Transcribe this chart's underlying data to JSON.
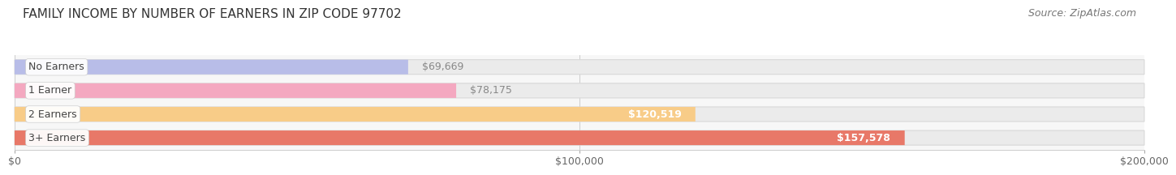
{
  "title": "FAMILY INCOME BY NUMBER OF EARNERS IN ZIP CODE 97702",
  "source": "Source: ZipAtlas.com",
  "categories": [
    "No Earners",
    "1 Earner",
    "2 Earners",
    "3+ Earners"
  ],
  "values": [
    69669,
    78175,
    120519,
    157578
  ],
  "bar_colors": [
    "#b8bde8",
    "#f4a8c0",
    "#f8cc88",
    "#e87868"
  ],
  "bar_bg_color": "#ebebeb",
  "bar_bg_edge_color": "#d8d8d8",
  "value_labels": [
    "$69,669",
    "$78,175",
    "$120,519",
    "$157,578"
  ],
  "value_label_inside_color": "#ffffff",
  "value_label_outside_color": "#888888",
  "value_inside_threshold": 90000,
  "xlim": [
    0,
    200000
  ],
  "xtick_values": [
    0,
    100000,
    200000
  ],
  "xtick_labels": [
    "$0",
    "$100,000",
    "$200,000"
  ],
  "background_color": "#ffffff",
  "plot_bg_color": "#f7f7f7",
  "title_fontsize": 11,
  "source_fontsize": 9,
  "label_fontsize": 9,
  "value_fontsize": 9,
  "tick_fontsize": 9,
  "bar_height": 0.62,
  "bar_spacing": 1.0
}
